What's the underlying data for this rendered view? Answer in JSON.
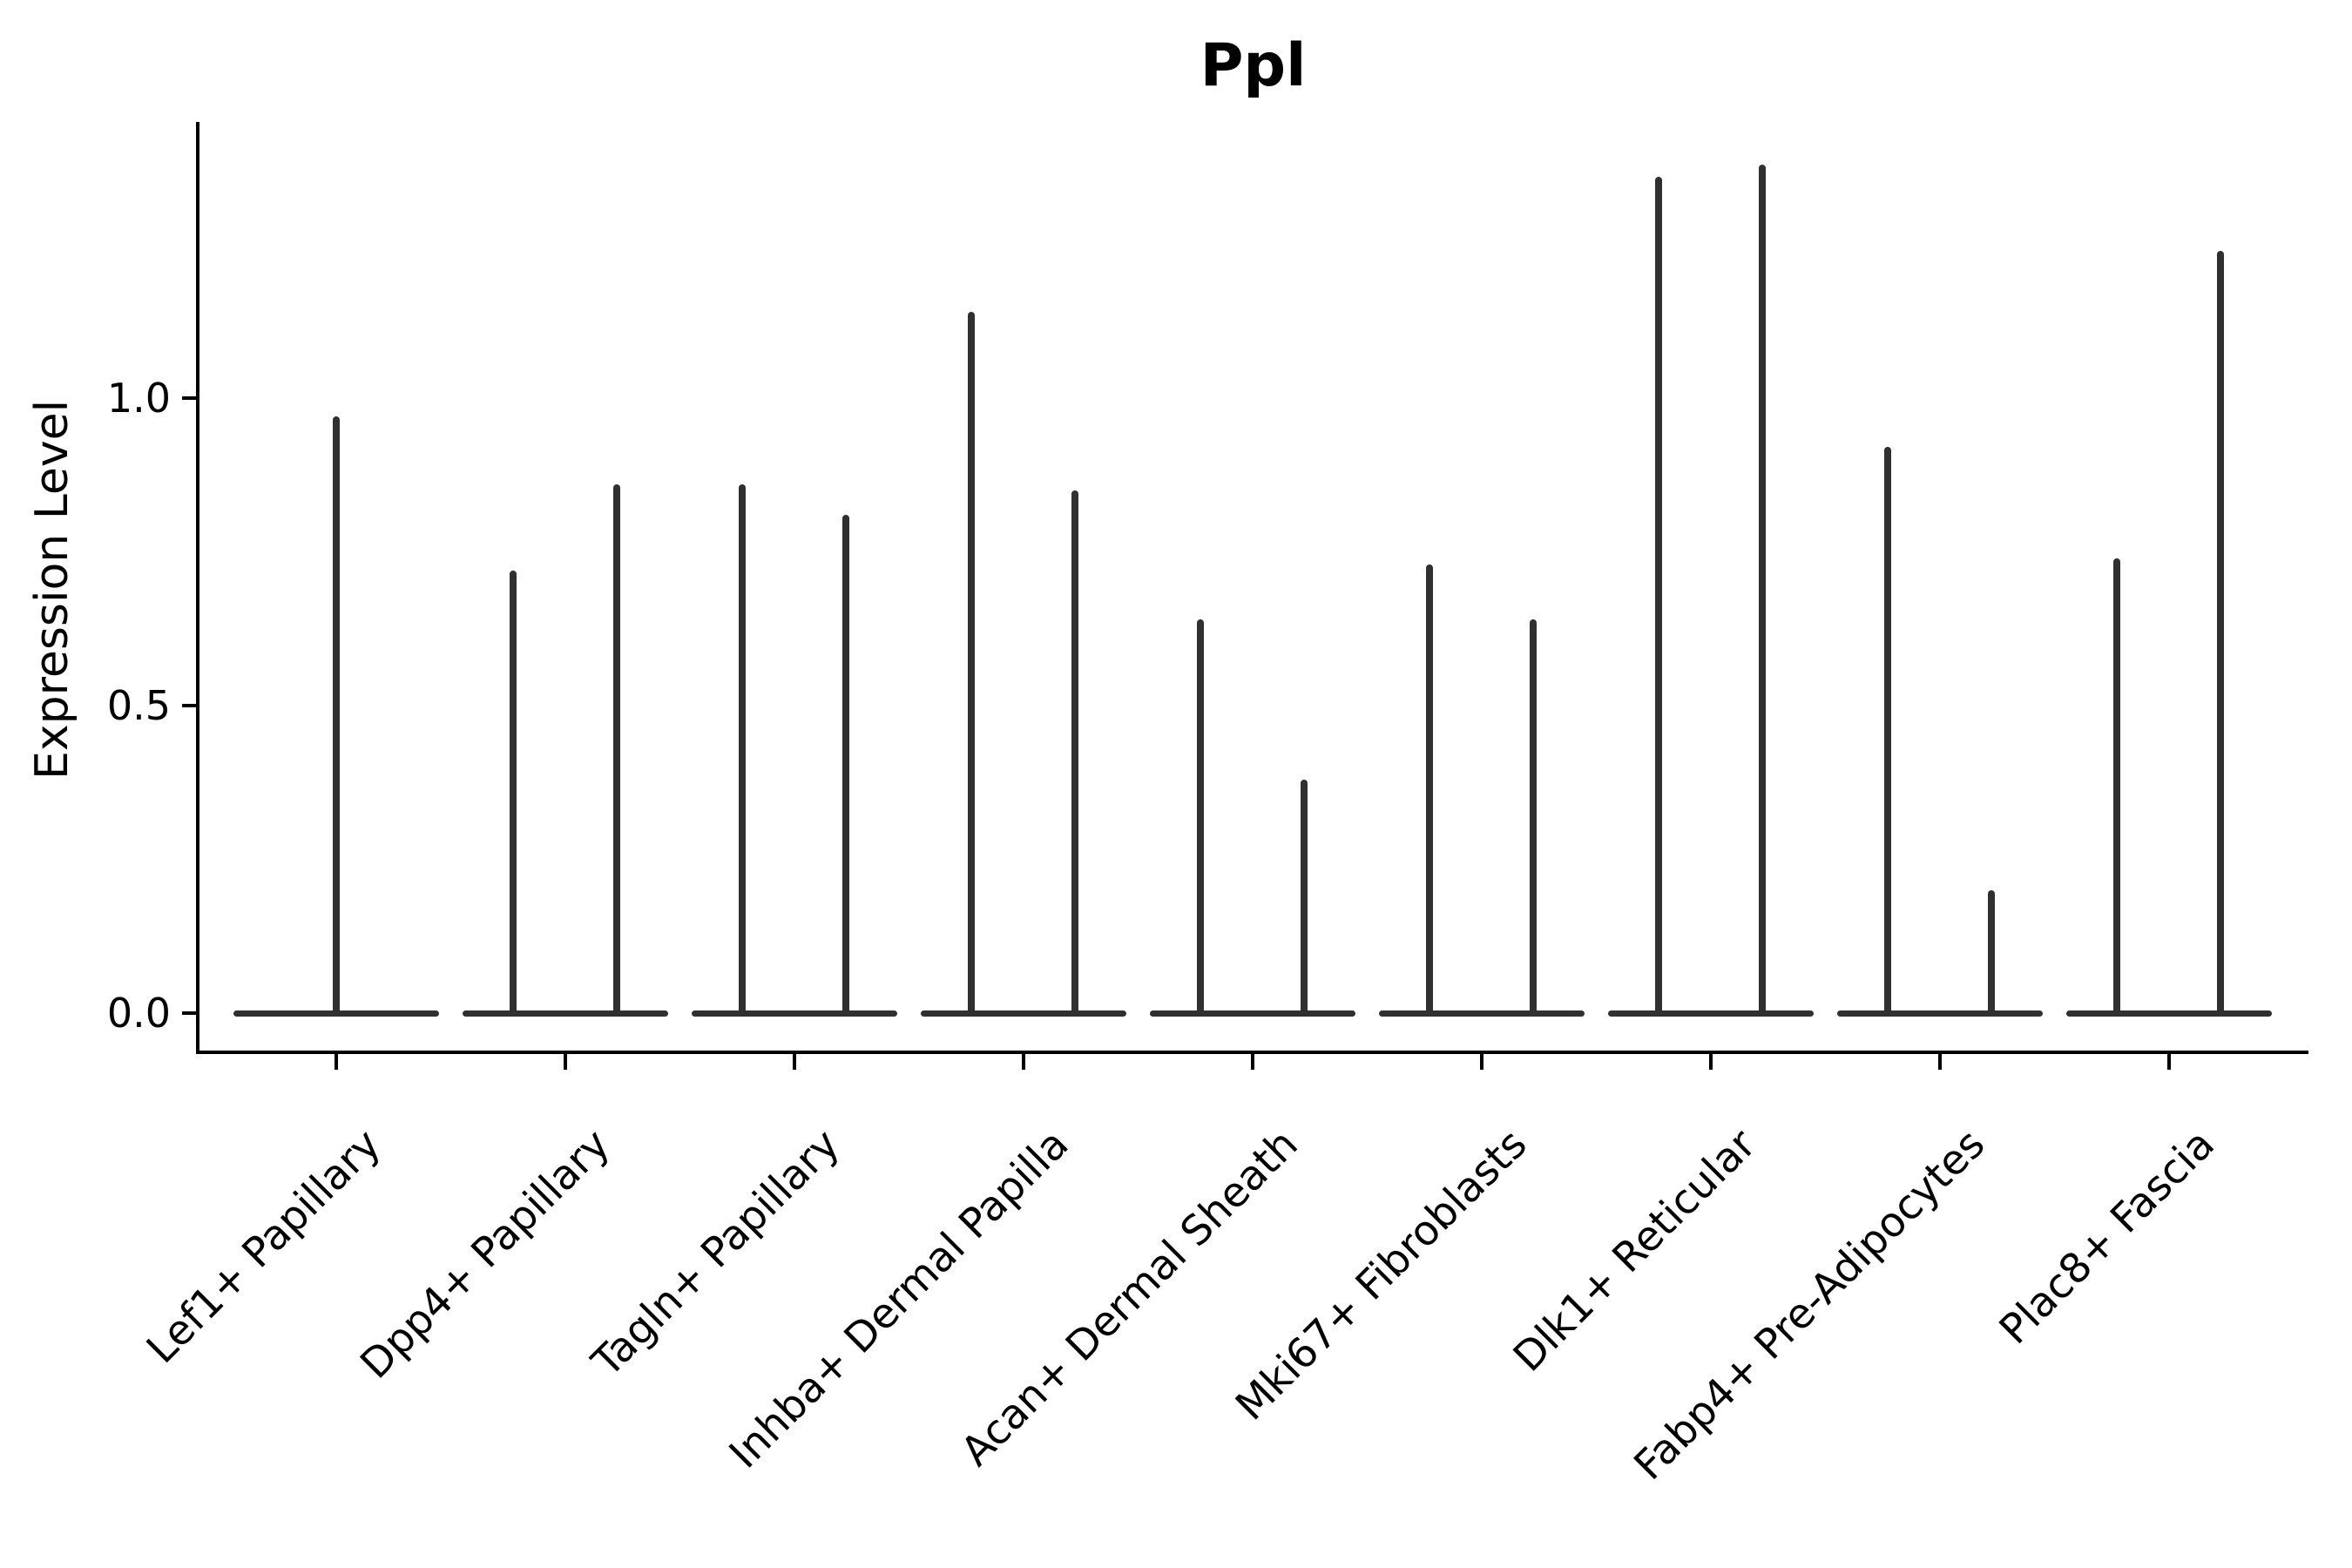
{
  "chart_data": {
    "type": "violin",
    "title": "Ppl",
    "xlabel": "",
    "ylabel": "Expression Level",
    "ytick_labels": [
      "0.0",
      "0.5",
      "1.0"
    ],
    "ytick_values": [
      0.0,
      0.5,
      1.0
    ],
    "ylim": [
      -0.064,
      1.449
    ],
    "grid": "off",
    "legend": "none",
    "axis_color": "#000000",
    "violin_color": "#303030",
    "distribution_note": "Each violin's density mass sits at 0 (wide flat base) with a thin spike rising to the maximum expression value; first category has one full-width violin, all others have two side-by-side violins",
    "categories": [
      "Lef1+ Papillary",
      "Dpp4+ Papillary",
      "Tagln+ Papillary",
      "Inhba+ Dermal Papilla",
      "Acan+ Dermal Sheath",
      "Mki67+ Fibroblasts",
      "Dlk1+ Reticular",
      "Fabp4+ Pre-Adipocytes",
      "Plac8+ Fascia"
    ],
    "series": [
      {
        "category": "Lef1+ Papillary",
        "violins": [
          {
            "slot": "full",
            "peak": 0.97
          }
        ]
      },
      {
        "category": "Dpp4+ Papillary",
        "violins": [
          {
            "slot": "left",
            "peak": 0.72
          },
          {
            "slot": "right",
            "peak": 0.86
          }
        ]
      },
      {
        "category": "Tagln+ Papillary",
        "violins": [
          {
            "slot": "left",
            "peak": 0.86
          },
          {
            "slot": "right",
            "peak": 0.81
          }
        ]
      },
      {
        "category": "Inhba+ Dermal Papilla",
        "violins": [
          {
            "slot": "left",
            "peak": 1.14
          },
          {
            "slot": "right",
            "peak": 0.85
          }
        ]
      },
      {
        "category": "Acan+ Dermal Sheath",
        "violins": [
          {
            "slot": "left",
            "peak": 0.64
          },
          {
            "slot": "right",
            "peak": 0.38
          }
        ]
      },
      {
        "category": "Mki67+ Fibroblasts",
        "violins": [
          {
            "slot": "left",
            "peak": 0.73
          },
          {
            "slot": "right",
            "peak": 0.64
          }
        ]
      },
      {
        "category": "Dlk1+ Reticular",
        "violins": [
          {
            "slot": "left",
            "peak": 1.36
          },
          {
            "slot": "right",
            "peak": 1.38
          }
        ]
      },
      {
        "category": "Fabp4+ Pre-Adipocytes",
        "violins": [
          {
            "slot": "left",
            "peak": 0.92
          },
          {
            "slot": "right",
            "peak": 0.2
          }
        ]
      },
      {
        "category": "Plac8+ Fascia",
        "violins": [
          {
            "slot": "left",
            "peak": 0.74
          },
          {
            "slot": "right",
            "peak": 1.24
          }
        ]
      }
    ]
  }
}
